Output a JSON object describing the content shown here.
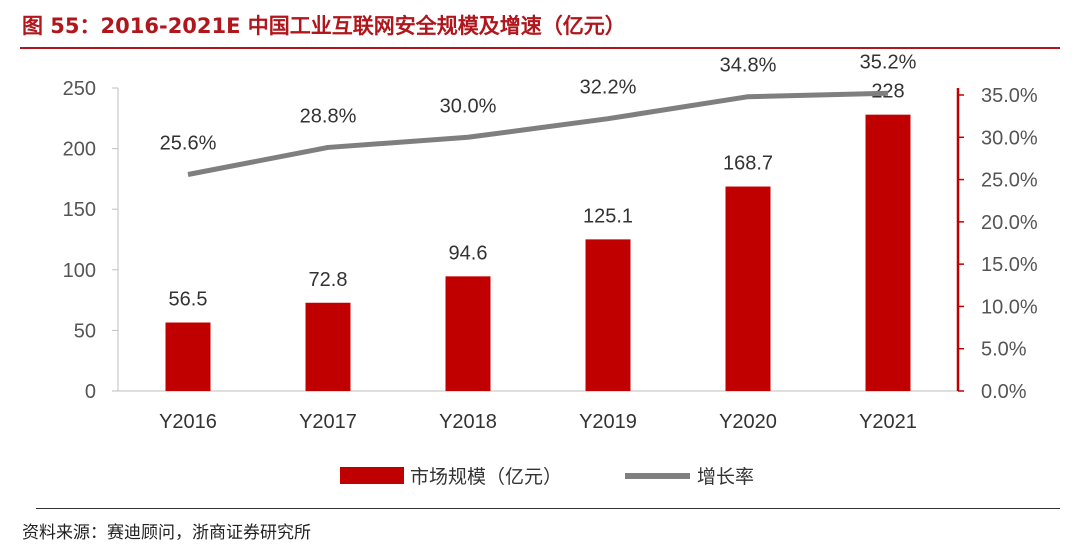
{
  "header": {
    "title": "图 55：2016-2021E 中国工业互联网安全规模及增速（亿元）"
  },
  "footer": {
    "source": "资料来源：赛迪顾问，浙商证券研究所"
  },
  "colors": {
    "bar": "#c00000",
    "line": "#7f7f7f",
    "accent": "#b0161c"
  },
  "chart_data": {
    "type": "bar",
    "categories": [
      "Y2016",
      "Y2017",
      "Y2018",
      "Y2019",
      "Y2020",
      "Y2021"
    ],
    "series": [
      {
        "name": "市场规模（亿元）",
        "type": "bar",
        "axis": "left",
        "values": [
          56.5,
          72.8,
          94.6,
          125.1,
          168.7,
          228
        ],
        "labels": [
          "56.5",
          "72.8",
          "94.6",
          "125.1",
          "168.7",
          "228"
        ]
      },
      {
        "name": "增长率",
        "type": "line",
        "axis": "right",
        "values": [
          25.6,
          28.8,
          30.0,
          32.2,
          34.8,
          35.2
        ],
        "labels": [
          "25.6%",
          "28.8%",
          "30.0%",
          "32.2%",
          "34.8%",
          "35.2%"
        ]
      }
    ],
    "y_left": {
      "ylim": [
        0,
        250
      ],
      "ticks": [
        "0",
        "50",
        "100",
        "150",
        "200",
        "250"
      ]
    },
    "y_right": {
      "ylim": [
        0,
        35
      ],
      "ticks": [
        "0.0%",
        "5.0%",
        "10.0%",
        "15.0%",
        "20.0%",
        "25.0%",
        "30.0%",
        "35.0%"
      ]
    },
    "grid": false,
    "legend": "bottom"
  }
}
